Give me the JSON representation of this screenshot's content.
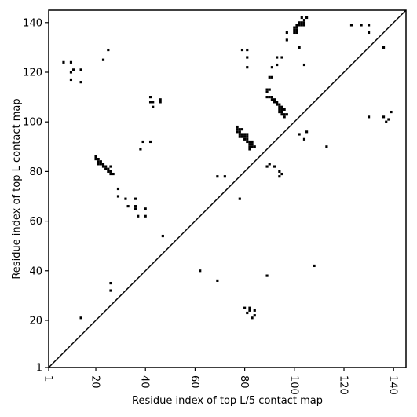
{
  "chart_data": {
    "type": "scatter",
    "xlabel": "Residue index of top L/5 contact map",
    "ylabel": "Residue index of top L contact map",
    "xlim": [
      1,
      145
    ],
    "ylim": [
      1,
      145
    ],
    "x_ticks": [
      1,
      20,
      40,
      60,
      80,
      100,
      120,
      140
    ],
    "y_ticks": [
      1,
      20,
      40,
      60,
      80,
      100,
      120,
      140
    ],
    "x_tick_labels": [
      "1",
      "20",
      "40",
      "60",
      "80",
      "100",
      "120",
      "140"
    ],
    "y_tick_labels": [
      "1",
      "20",
      "40",
      "60",
      "80",
      "100",
      "120",
      "140"
    ],
    "x_tick_rotation_deg": 90,
    "grid": false,
    "reference_line": "y = x",
    "marker_color": "#000000",
    "points": [
      [
        7,
        124
      ],
      [
        10,
        124
      ],
      [
        10,
        117
      ],
      [
        10,
        120
      ],
      [
        11,
        121
      ],
      [
        14,
        121
      ],
      [
        14,
        116
      ],
      [
        23,
        125
      ],
      [
        25,
        129
      ],
      [
        14,
        21
      ],
      [
        20,
        86
      ],
      [
        20,
        85
      ],
      [
        21,
        85
      ],
      [
        21,
        84
      ],
      [
        22,
        84
      ],
      [
        21,
        83
      ],
      [
        22,
        83
      ],
      [
        23,
        83
      ],
      [
        23,
        82
      ],
      [
        24,
        82
      ],
      [
        24,
        81
      ],
      [
        25,
        81
      ],
      [
        26,
        82
      ],
      [
        25,
        80
      ],
      [
        26,
        80
      ],
      [
        26,
        79
      ],
      [
        27,
        79
      ],
      [
        29,
        73
      ],
      [
        29,
        70
      ],
      [
        32,
        69
      ],
      [
        33,
        66
      ],
      [
        36,
        69
      ],
      [
        36,
        66
      ],
      [
        36,
        65
      ],
      [
        37,
        62
      ],
      [
        38,
        89
      ],
      [
        39,
        92
      ],
      [
        40,
        65
      ],
      [
        40,
        62
      ],
      [
        42,
        92
      ],
      [
        42,
        110
      ],
      [
        42,
        108
      ],
      [
        43,
        108
      ],
      [
        43,
        106
      ],
      [
        46,
        109
      ],
      [
        46,
        108
      ],
      [
        47,
        54
      ],
      [
        26,
        35
      ],
      [
        26,
        32
      ],
      [
        62,
        40
      ],
      [
        69,
        36
      ],
      [
        69,
        78
      ],
      [
        72,
        78
      ],
      [
        77,
        98
      ],
      [
        77,
        97
      ],
      [
        77,
        96
      ],
      [
        78,
        97
      ],
      [
        78,
        96
      ],
      [
        79,
        97
      ],
      [
        78,
        95
      ],
      [
        79,
        95
      ],
      [
        78,
        94
      ],
      [
        79,
        94
      ],
      [
        80,
        94
      ],
      [
        80,
        95
      ],
      [
        81,
        95
      ],
      [
        81,
        94
      ],
      [
        81,
        93
      ],
      [
        80,
        93
      ],
      [
        81,
        92
      ],
      [
        82,
        92
      ],
      [
        83,
        92
      ],
      [
        82,
        91
      ],
      [
        83,
        91
      ],
      [
        82,
        90
      ],
      [
        83,
        90
      ],
      [
        84,
        90
      ],
      [
        82,
        89
      ],
      [
        78,
        69
      ],
      [
        79,
        129
      ],
      [
        81,
        129
      ],
      [
        81,
        126
      ],
      [
        81,
        122
      ],
      [
        80,
        25
      ],
      [
        81,
        23
      ],
      [
        82,
        25
      ],
      [
        82,
        24
      ],
      [
        83,
        21
      ],
      [
        84,
        22
      ],
      [
        84,
        24
      ],
      [
        89,
        113
      ],
      [
        89,
        112
      ],
      [
        89,
        110
      ],
      [
        90,
        110
      ],
      [
        91,
        110
      ],
      [
        91,
        109
      ],
      [
        92,
        109
      ],
      [
        92,
        108
      ],
      [
        93,
        108
      ],
      [
        93,
        107
      ],
      [
        94,
        107
      ],
      [
        94,
        106
      ],
      [
        95,
        106
      ],
      [
        94,
        105
      ],
      [
        95,
        105
      ],
      [
        96,
        105
      ],
      [
        94,
        104
      ],
      [
        95,
        104
      ],
      [
        95,
        103
      ],
      [
        96,
        103
      ],
      [
        97,
        103
      ],
      [
        96,
        102
      ],
      [
        90,
        118
      ],
      [
        91,
        118
      ],
      [
        91,
        122
      ],
      [
        93,
        123
      ],
      [
        93,
        126
      ],
      [
        95,
        126
      ],
      [
        90,
        113
      ],
      [
        89,
        82
      ],
      [
        90,
        83
      ],
      [
        92,
        82
      ],
      [
        94,
        80
      ],
      [
        94,
        78
      ],
      [
        95,
        79
      ],
      [
        89,
        38
      ],
      [
        97,
        133
      ],
      [
        97,
        136
      ],
      [
        100,
        136
      ],
      [
        100,
        137
      ],
      [
        100,
        138
      ],
      [
        101,
        136
      ],
      [
        101,
        137
      ],
      [
        101,
        138
      ],
      [
        101,
        139
      ],
      [
        102,
        139
      ],
      [
        102,
        140
      ],
      [
        103,
        139
      ],
      [
        103,
        140
      ],
      [
        104,
        139
      ],
      [
        104,
        140
      ],
      [
        104,
        141
      ],
      [
        103,
        142
      ],
      [
        105,
        142
      ],
      [
        102,
        130
      ],
      [
        104,
        123
      ],
      [
        102,
        95
      ],
      [
        104,
        93
      ],
      [
        105,
        96
      ],
      [
        108,
        42
      ],
      [
        113,
        90
      ],
      [
        123,
        139
      ],
      [
        127,
        139
      ],
      [
        130,
        139
      ],
      [
        130,
        136
      ],
      [
        130,
        102
      ],
      [
        136,
        130
      ],
      [
        136,
        102
      ],
      [
        137,
        100
      ],
      [
        138,
        101
      ],
      [
        139,
        104
      ]
    ]
  }
}
